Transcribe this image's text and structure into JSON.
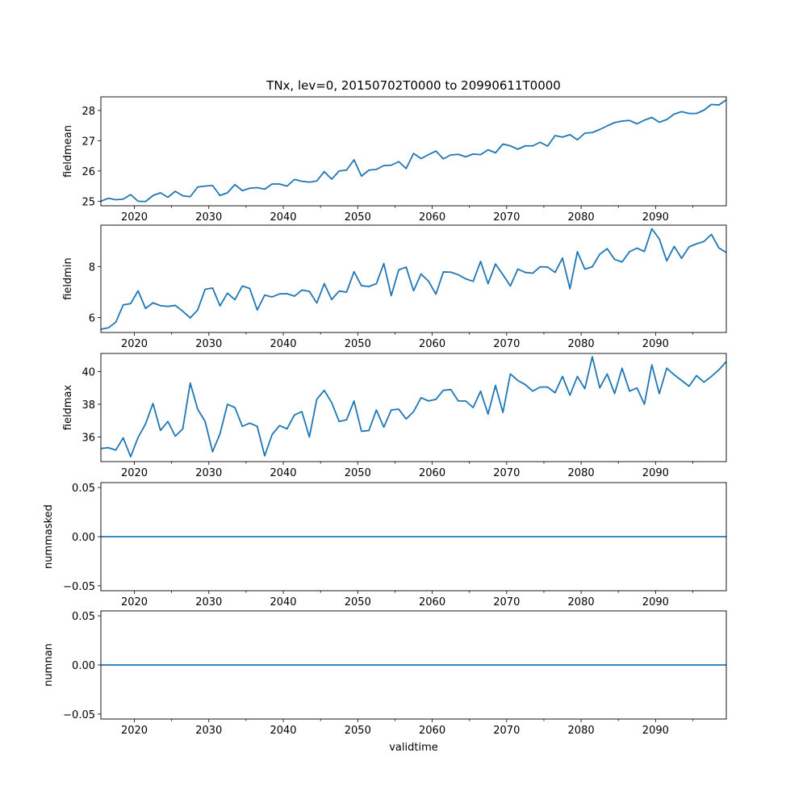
{
  "title": "TNx, lev=0, 20150702T0000 to 20990611T0000",
  "xlabel": "validtime",
  "colors": {
    "series": "#1f77b4",
    "axis": "#000000",
    "background": "#ffffff"
  },
  "chart_data": [
    {
      "type": "line",
      "ylabel": "fieldmean",
      "xlim": [
        2015.5,
        2099.5
      ],
      "ylim": [
        24.85,
        28.45
      ],
      "xticks": [
        2020,
        2030,
        2040,
        2050,
        2060,
        2070,
        2080,
        2090
      ],
      "xtick_labels": [
        "2020",
        "2030",
        "2040",
        "2050",
        "2060",
        "2070",
        "2080",
        "2090"
      ],
      "yticks": [
        25,
        26,
        27,
        28
      ],
      "ytick_labels": [
        "25",
        "26",
        "27",
        "28"
      ],
      "x_start": 2015.5,
      "x_step": 1,
      "values": [
        25.0,
        25.1,
        25.05,
        25.07,
        25.22,
        25.0,
        24.99,
        25.19,
        25.28,
        25.13,
        25.33,
        25.18,
        25.15,
        25.47,
        25.5,
        25.52,
        25.19,
        25.28,
        25.55,
        25.35,
        25.43,
        25.45,
        25.4,
        25.57,
        25.57,
        25.5,
        25.72,
        25.66,
        25.63,
        25.67,
        25.98,
        25.73,
        26.0,
        26.03,
        26.37,
        25.83,
        26.03,
        26.05,
        26.18,
        26.19,
        26.31,
        26.08,
        26.58,
        26.41,
        26.54,
        26.66,
        26.4,
        26.53,
        26.55,
        26.47,
        26.56,
        26.54,
        26.7,
        26.6,
        26.89,
        26.83,
        26.72,
        26.83,
        26.83,
        26.95,
        26.82,
        27.17,
        27.12,
        27.2,
        27.03,
        27.25,
        27.27,
        27.37,
        27.49,
        27.6,
        27.65,
        27.67,
        27.56,
        27.68,
        27.77,
        27.61,
        27.7,
        27.88,
        27.96,
        27.9,
        27.9,
        28.01,
        28.2,
        28.18,
        28.35
      ]
    },
    {
      "type": "line",
      "ylabel": "fieldmin",
      "xlim": [
        2015.5,
        2099.5
      ],
      "ylim": [
        5.42,
        9.62
      ],
      "xticks": [
        2020,
        2030,
        2040,
        2050,
        2060,
        2070,
        2080,
        2090
      ],
      "xtick_labels": [
        "2020",
        "2030",
        "2040",
        "2050",
        "2060",
        "2070",
        "2080",
        "2090"
      ],
      "yticks": [
        6,
        8
      ],
      "ytick_labels": [
        "6",
        "8"
      ],
      "x_start": 2015.5,
      "x_step": 1,
      "values": [
        5.55,
        5.6,
        5.82,
        6.5,
        6.55,
        7.05,
        6.36,
        6.58,
        6.47,
        6.44,
        6.48,
        6.25,
        5.99,
        6.3,
        7.11,
        7.16,
        6.46,
        6.96,
        6.7,
        7.24,
        7.14,
        6.3,
        6.88,
        6.81,
        6.93,
        6.94,
        6.84,
        7.08,
        7.03,
        6.57,
        7.33,
        6.71,
        7.04,
        7.0,
        7.8,
        7.25,
        7.22,
        7.33,
        8.12,
        6.86,
        7.87,
        7.98,
        7.05,
        7.71,
        7.43,
        6.92,
        7.79,
        7.78,
        7.68,
        7.52,
        7.42,
        8.2,
        7.33,
        8.1,
        7.68,
        7.24,
        7.9,
        7.77,
        7.74,
        7.99,
        7.98,
        7.77,
        8.33,
        7.13,
        8.58,
        7.9,
        7.99,
        8.48,
        8.7,
        8.28,
        8.18,
        8.58,
        8.72,
        8.59,
        9.48,
        9.08,
        8.22,
        8.79,
        8.32,
        8.77,
        8.89,
        8.98,
        9.26,
        8.73,
        8.55
      ]
    },
    {
      "type": "line",
      "ylabel": "fieldmax",
      "xlim": [
        2015.5,
        2099.5
      ],
      "ylim": [
        34.5,
        41.1
      ],
      "xticks": [
        2020,
        2030,
        2040,
        2050,
        2060,
        2070,
        2080,
        2090
      ],
      "xtick_labels": [
        "2020",
        "2030",
        "2040",
        "2050",
        "2060",
        "2070",
        "2080",
        "2090"
      ],
      "yticks": [
        36,
        38,
        40
      ],
      "ytick_labels": [
        "36",
        "38",
        "40"
      ],
      "x_start": 2015.5,
      "x_step": 1,
      "values": [
        35.3,
        35.35,
        35.2,
        35.95,
        34.8,
        35.98,
        36.8,
        38.05,
        36.4,
        36.95,
        36.05,
        36.5,
        39.3,
        37.7,
        36.95,
        35.1,
        36.2,
        38.0,
        37.8,
        36.65,
        36.85,
        36.65,
        34.85,
        36.15,
        36.7,
        36.5,
        37.35,
        37.55,
        36.0,
        38.3,
        38.85,
        38.1,
        36.95,
        37.05,
        38.2,
        36.35,
        36.4,
        37.65,
        36.6,
        37.65,
        37.7,
        37.1,
        37.55,
        38.4,
        38.2,
        38.3,
        38.85,
        38.9,
        38.2,
        38.2,
        37.8,
        38.8,
        37.4,
        39.15,
        37.5,
        39.85,
        39.45,
        39.2,
        38.8,
        39.05,
        39.05,
        38.7,
        39.7,
        38.55,
        39.7,
        38.95,
        40.9,
        39.0,
        39.85,
        38.65,
        40.2,
        38.8,
        39.0,
        38.0,
        40.4,
        38.65,
        40.2,
        39.8,
        39.45,
        39.1,
        39.75,
        39.35,
        39.7,
        40.1,
        40.6
      ]
    },
    {
      "type": "line",
      "ylabel": "nummasked",
      "xlim": [
        2015.5,
        2099.5
      ],
      "ylim": [
        -0.055,
        0.055
      ],
      "xticks": [
        2020,
        2030,
        2040,
        2050,
        2060,
        2070,
        2080,
        2090
      ],
      "xtick_labels": [
        "2020",
        "2030",
        "2040",
        "2050",
        "2060",
        "2070",
        "2080",
        "2090"
      ],
      "yticks": [
        -0.05,
        0.0,
        0.05
      ],
      "ytick_labels": [
        "−0.05",
        "0.00",
        "0.05"
      ],
      "x_start": 2015.5,
      "x_step": 84,
      "values": [
        0,
        0
      ]
    },
    {
      "type": "line",
      "ylabel": "numnan",
      "xlim": [
        2015.5,
        2099.5
      ],
      "ylim": [
        -0.055,
        0.055
      ],
      "xticks": [
        2020,
        2030,
        2040,
        2050,
        2060,
        2070,
        2080,
        2090
      ],
      "xtick_labels": [
        "2020",
        "2030",
        "2040",
        "2050",
        "2060",
        "2070",
        "2080",
        "2090"
      ],
      "yticks": [
        -0.05,
        0.0,
        0.05
      ],
      "ytick_labels": [
        "−0.05",
        "0.00",
        "0.05"
      ],
      "x_start": 2015.5,
      "x_step": 84,
      "values": [
        0,
        0
      ]
    }
  ]
}
